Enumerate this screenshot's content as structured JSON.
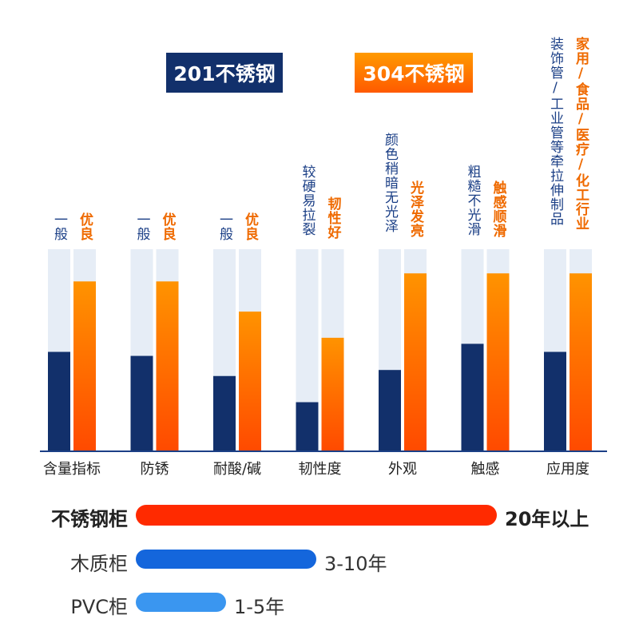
{
  "legend": {
    "s201": "201不锈钢",
    "s304": "304不锈钢"
  },
  "chart_data": {
    "type": "bar",
    "categories": [
      "含量指标",
      "防锈",
      "耐酸/碱",
      "韧性度",
      "外观",
      "触感",
      "应用度"
    ],
    "series": [
      {
        "name": "201不锈钢",
        "values": [
          49,
          47,
          37,
          24,
          40,
          53,
          49
        ],
        "annotations": [
          "一般",
          "一般",
          "一般",
          "较硬易拉裂",
          "颜色稍暗无光泽",
          "粗糙不光滑",
          "装饰管/工业管等牵拉伸制品"
        ],
        "color": "#12306b"
      },
      {
        "name": "304不锈钢",
        "values": [
          84,
          84,
          69,
          56,
          88,
          88,
          88
        ],
        "annotations": [
          "优良",
          "优良",
          "优良",
          "韧性好",
          "光泽发亮",
          "触感顺滑",
          "家用/食品/医疗/化工行业"
        ],
        "color": "#ff7a00"
      }
    ],
    "ylim": [
      0,
      100
    ]
  },
  "lifespan": {
    "items": [
      {
        "label": "不锈钢柜",
        "value": "20年以上",
        "years": 20,
        "color": "#ff2a00"
      },
      {
        "label": "木质柜",
        "value": "3-10年",
        "years": 10,
        "color": "#1466dc"
      },
      {
        "label": "PVC柜",
        "value": "1-5年",
        "years": 5,
        "color": "#3a96f0"
      }
    ]
  }
}
